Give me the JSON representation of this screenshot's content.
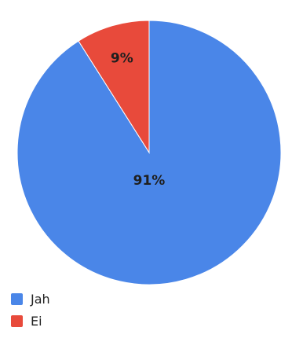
{
  "chart_data": {
    "type": "pie",
    "slices": [
      {
        "label": "Jah",
        "value": 91,
        "display": "91%",
        "color": "#4a86e8"
      },
      {
        "label": "Ei",
        "value": 9,
        "display": "9%",
        "color": "#e84a3b"
      }
    ],
    "legend_position": "bottom-left"
  },
  "legend": {
    "items": [
      {
        "label": "Jah",
        "color": "#4a86e8"
      },
      {
        "label": "Ei",
        "color": "#e84a3b"
      }
    ]
  }
}
